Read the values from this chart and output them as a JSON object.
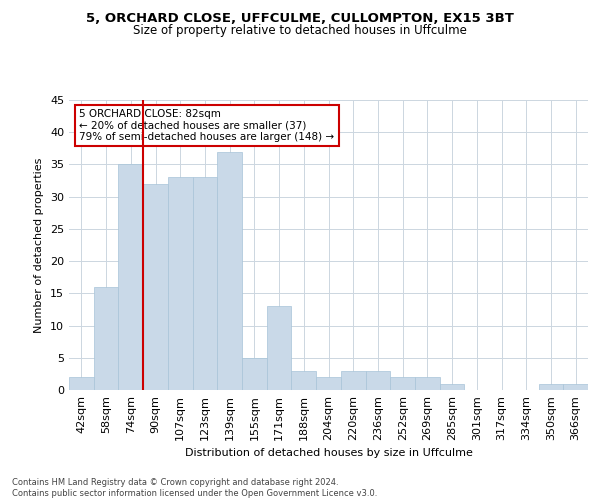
{
  "title1": "5, ORCHARD CLOSE, UFFCULME, CULLOMPTON, EX15 3BT",
  "title2": "Size of property relative to detached houses in Uffculme",
  "xlabel": "Distribution of detached houses by size in Uffculme",
  "ylabel": "Number of detached properties",
  "categories": [
    "42sqm",
    "58sqm",
    "74sqm",
    "90sqm",
    "107sqm",
    "123sqm",
    "139sqm",
    "155sqm",
    "171sqm",
    "188sqm",
    "204sqm",
    "220sqm",
    "236sqm",
    "252sqm",
    "269sqm",
    "285sqm",
    "301sqm",
    "317sqm",
    "334sqm",
    "350sqm",
    "366sqm"
  ],
  "values": [
    2,
    16,
    35,
    32,
    33,
    33,
    37,
    5,
    13,
    3,
    2,
    3,
    3,
    2,
    2,
    1,
    0,
    0,
    0,
    1,
    1
  ],
  "bar_color": "#c9d9e8",
  "bar_edge_color": "#a8c4d8",
  "property_line_color": "#cc0000",
  "annotation_text": "5 ORCHARD CLOSE: 82sqm\n← 20% of detached houses are smaller (37)\n79% of semi-detached houses are larger (148) →",
  "annotation_box_color": "#ffffff",
  "annotation_box_edge_color": "#cc0000",
  "footer_text": "Contains HM Land Registry data © Crown copyright and database right 2024.\nContains public sector information licensed under the Open Government Licence v3.0.",
  "ylim": [
    0,
    45
  ],
  "background_color": "#ffffff",
  "grid_color": "#ccd6e0"
}
